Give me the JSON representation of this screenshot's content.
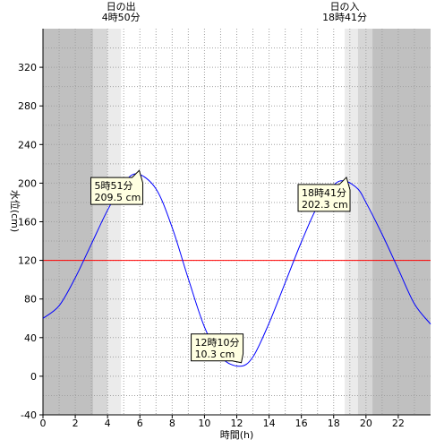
{
  "chart_data": {
    "type": "line",
    "xlabel": "時間(h)",
    "ylabel": "水位(cm)",
    "xlim": [
      0,
      24
    ],
    "ylim": [
      -40,
      360
    ],
    "x_ticks": [
      0,
      2,
      4,
      6,
      8,
      10,
      12,
      14,
      16,
      18,
      20,
      22
    ],
    "y_ticks": [
      -40,
      0,
      40,
      80,
      120,
      160,
      200,
      240,
      280,
      320
    ],
    "grid": true,
    "reference_line": {
      "value": 120,
      "color": "#ff0000"
    },
    "sunrise": {
      "label": "日の出",
      "time": "4時50分",
      "hour": 4.833
    },
    "sunset": {
      "label": "日の入",
      "time": "18時41分",
      "hour": 18.683
    },
    "background_bands": [
      {
        "from": 0,
        "to": 3.1,
        "shade": "#c0c0c0"
      },
      {
        "from": 3.1,
        "to": 4.0,
        "shade": "#d6d6d6"
      },
      {
        "from": 4.0,
        "to": 4.833,
        "shade": "#ebebeb"
      },
      {
        "from": 18.683,
        "to": 19.5,
        "shade": "#ebebeb"
      },
      {
        "from": 19.5,
        "to": 20.4,
        "shade": "#d6d6d6"
      },
      {
        "from": 20.4,
        "to": 24,
        "shade": "#c0c0c0"
      }
    ],
    "series": [
      {
        "color": "#0000ff",
        "x": [
          0,
          1,
          2,
          3,
          4,
          5,
          5.85,
          7,
          8,
          9,
          10,
          11,
          12.17,
          13,
          14,
          15,
          16,
          17,
          18,
          18.68,
          19.5,
          20,
          21,
          22,
          23,
          24
        ],
        "values": [
          60,
          73,
          102,
          137,
          172,
          200,
          209.5,
          194,
          154,
          101,
          51,
          20,
          10.3,
          20,
          55,
          97,
          139,
          176,
          198,
          202.3,
          194,
          180,
          147,
          111,
          75,
          54
        ]
      }
    ],
    "annotations": [
      {
        "time": "5時51分",
        "value": "209.5 cm",
        "x": 5.85,
        "y": 209.5,
        "dir": "up"
      },
      {
        "time": "12時10分",
        "value": "10.3 cm",
        "x": 12.17,
        "y": 10.3,
        "dir": "down"
      },
      {
        "time": "18時41分",
        "value": "202.3 cm",
        "x": 18.68,
        "y": 202.3,
        "dir": "up"
      }
    ],
    "colors": {
      "axis": "#000000",
      "grid": "#a0a0a0",
      "callout_bg": "#ffffe1"
    }
  }
}
